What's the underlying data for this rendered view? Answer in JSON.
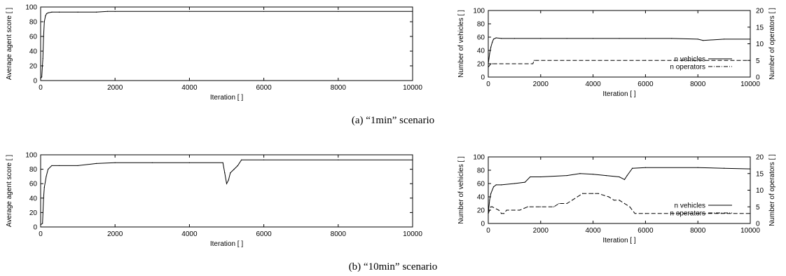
{
  "captions": [
    "(a) “1min” scenario",
    "(b) “10min” scenario"
  ],
  "chart_data": [
    {
      "type": "line",
      "xlabel": "Iteration [ ]",
      "ylabel": "Average agent score [ ]",
      "xlim": [
        0,
        10000
      ],
      "ylim": [
        0,
        100
      ],
      "x_ticks": [
        0,
        2000,
        4000,
        6000,
        8000,
        10000
      ],
      "y_ticks": [
        0,
        20,
        40,
        60,
        80,
        100
      ],
      "grid": false,
      "series": [
        {
          "x": [
            0,
            30,
            60,
            80,
            100,
            130,
            160,
            200,
            300,
            500,
            1000,
            1500,
            1800,
            2000,
            4000,
            6000,
            8000,
            10000
          ],
          "y": [
            3,
            5,
            30,
            60,
            80,
            88,
            91,
            92,
            93,
            93,
            93,
            93,
            94,
            94,
            94,
            94,
            94,
            94
          ]
        }
      ]
    },
    {
      "type": "line",
      "xlabel": "Iteration [ ]",
      "ylabel": "Number of vehicles [ ]",
      "y2label": "Number of operators [ ]",
      "xlim": [
        0,
        10000
      ],
      "ylim": [
        0,
        100
      ],
      "y2lim": [
        0,
        20
      ],
      "x_ticks": [
        0,
        2000,
        4000,
        6000,
        8000,
        10000
      ],
      "y_ticks": [
        0,
        20,
        40,
        60,
        80,
        100
      ],
      "y2_ticks": [
        0,
        5,
        10,
        15,
        20
      ],
      "grid": false,
      "legend_position": "right",
      "series": [
        {
          "name": "n vehicles",
          "axis": "left",
          "style": "solid",
          "x": [
            0,
            50,
            100,
            150,
            200,
            300,
            500,
            1000,
            2000,
            3000,
            4000,
            5000,
            6000,
            7000,
            8000,
            8200,
            9000,
            10000
          ],
          "y": [
            20,
            35,
            45,
            52,
            57,
            59,
            58,
            58,
            58,
            58,
            58,
            58,
            58,
            58,
            57,
            55,
            57,
            57
          ]
        },
        {
          "name": "n operators",
          "axis": "right",
          "style": "dashed",
          "x": [
            0,
            100,
            150,
            300,
            1700,
            1750,
            6000,
            10000
          ],
          "y": [
            3,
            4,
            4,
            4,
            4,
            5,
            5,
            5
          ]
        }
      ]
    },
    {
      "type": "line",
      "xlabel": "Iteration [ ]",
      "ylabel": "Average agent score [ ]",
      "xlim": [
        0,
        10000
      ],
      "ylim": [
        0,
        100
      ],
      "x_ticks": [
        0,
        2000,
        4000,
        6000,
        8000,
        10000
      ],
      "y_ticks": [
        0,
        20,
        40,
        60,
        80,
        100
      ],
      "grid": false,
      "series": [
        {
          "x": [
            0,
            50,
            80,
            100,
            150,
            200,
            300,
            500,
            1000,
            1500,
            2000,
            3000,
            4000,
            4900,
            4950,
            5000,
            5050,
            5100,
            5200,
            5300,
            5400,
            6000,
            8000,
            10000
          ],
          "y": [
            3,
            5,
            40,
            55,
            70,
            80,
            85,
            85,
            85,
            88,
            89,
            89,
            89,
            89,
            75,
            60,
            65,
            75,
            80,
            85,
            93,
            93,
            93,
            93
          ]
        }
      ]
    },
    {
      "type": "line",
      "xlabel": "Iteration [ ]",
      "ylabel": "Number of vehicles [ ]",
      "y2label": "Number of operators [ ]",
      "xlim": [
        0,
        10000
      ],
      "ylim": [
        0,
        100
      ],
      "y2lim": [
        0,
        20
      ],
      "x_ticks": [
        0,
        2000,
        4000,
        6000,
        8000,
        10000
      ],
      "y_ticks": [
        0,
        20,
        40,
        60,
        80,
        100
      ],
      "y2_ticks": [
        0,
        5,
        10,
        15,
        20
      ],
      "grid": false,
      "legend_position": "right",
      "series": [
        {
          "name": "n vehicles",
          "axis": "left",
          "style": "solid",
          "x": [
            0,
            50,
            100,
            200,
            300,
            500,
            1000,
            1400,
            1600,
            2000,
            3000,
            3500,
            4000,
            4500,
            5000,
            5200,
            5300,
            5500,
            6000,
            8000,
            9000,
            10000
          ],
          "y": [
            15,
            35,
            45,
            55,
            58,
            58,
            60,
            62,
            70,
            70,
            72,
            75,
            74,
            72,
            70,
            66,
            72,
            83,
            84,
            84,
            83,
            82
          ]
        },
        {
          "name": "n operators",
          "axis": "right",
          "style": "dashed",
          "x": [
            0,
            100,
            150,
            400,
            500,
            600,
            700,
            1000,
            1200,
            1500,
            2000,
            2500,
            2700,
            3000,
            3200,
            3400,
            3600,
            4000,
            4200,
            4600,
            4800,
            5000,
            5200,
            5400,
            5600,
            6000,
            8000,
            10000
          ],
          "y": [
            3,
            5,
            5,
            4,
            3,
            3,
            4,
            4,
            4,
            5,
            5,
            5,
            6,
            6,
            7,
            8,
            9,
            9,
            9,
            8,
            7,
            7,
            6,
            5,
            3,
            3,
            3,
            3
          ]
        }
      ]
    }
  ]
}
